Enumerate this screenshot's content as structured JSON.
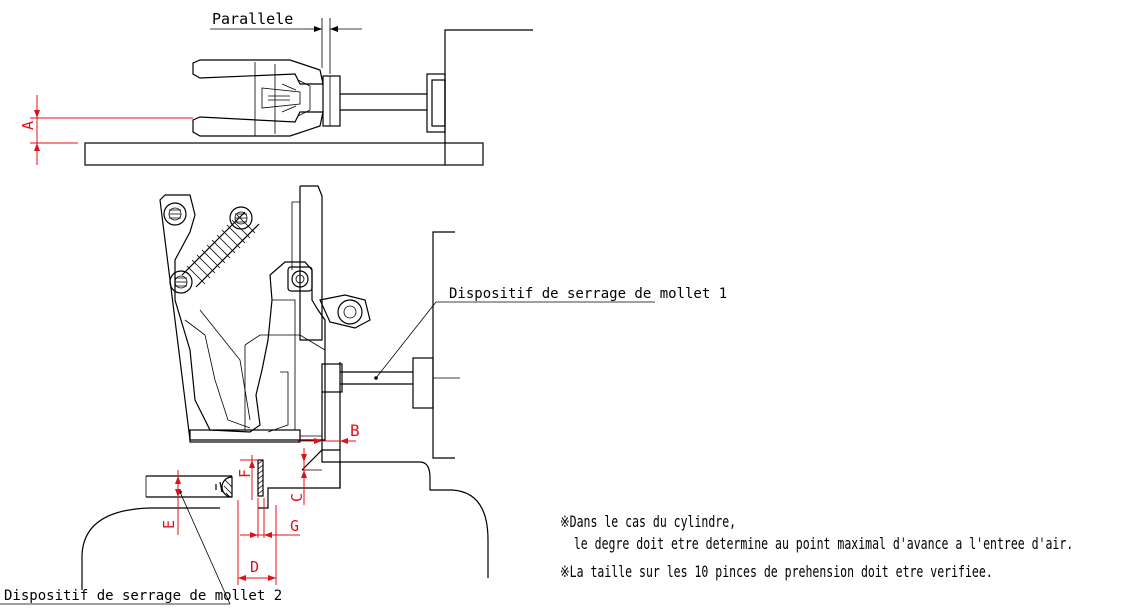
{
  "labels": {
    "parallele": "Parallele",
    "clamp1": "Dispositif de serrage de mollet 1",
    "clamp2": "Dispositif de serrage de mollet 2"
  },
  "dimensions": {
    "a": "A",
    "b": "B",
    "c": "C",
    "d": "D",
    "e": "E",
    "f": "F",
    "g": "G"
  },
  "notes": {
    "line1": "※Dans le cas du cylindre,",
    "line2": "  le degre doit etre determine au point maximal d'avance a l'entree d'air.",
    "line3": "※La taille sur les 10 pinces de prehension doit etre verifiee."
  },
  "colors": {
    "dimension": "#e0101a",
    "line": "#000000"
  }
}
